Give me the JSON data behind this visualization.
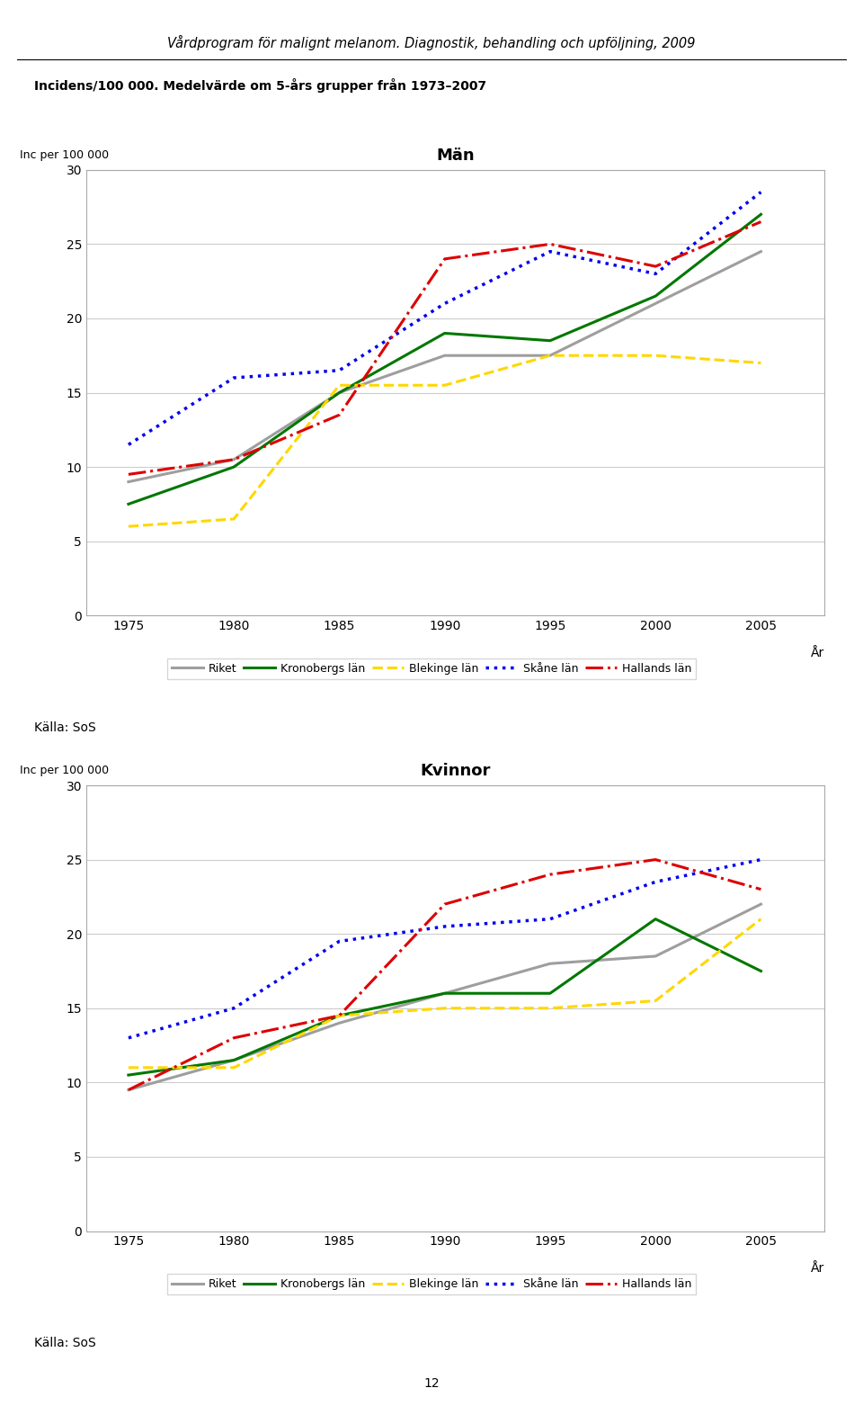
{
  "title_header": "Vårdprogram för malignt melanom. Diagnostik, behandling och upföljning, 2009",
  "subtitle": "Incidens/100 000. Medelvärde om 5-års grupper från 1973–2007",
  "ylabel": "Inc per 100 000",
  "xlabel": "År",
  "kallatext": "Källa: SoS",
  "x": [
    1975,
    1980,
    1985,
    1990,
    1995,
    2000,
    2005
  ],
  "men": {
    "title": "Män",
    "riket": [
      9.0,
      10.5,
      15.0,
      17.5,
      17.5,
      21.0,
      24.5
    ],
    "kronobergs": [
      7.5,
      10.0,
      15.0,
      19.0,
      18.5,
      21.5,
      27.0
    ],
    "blekinge": [
      6.0,
      6.5,
      15.5,
      15.5,
      17.5,
      17.5,
      17.0
    ],
    "skane": [
      11.5,
      16.0,
      16.5,
      21.0,
      24.5,
      23.0,
      28.5
    ],
    "hallands": [
      9.5,
      10.5,
      13.5,
      24.0,
      25.0,
      23.5,
      26.5
    ]
  },
  "women": {
    "title": "Kvinnor",
    "riket": [
      9.5,
      11.5,
      14.0,
      16.0,
      18.0,
      18.5,
      22.0
    ],
    "kronobergs": [
      10.5,
      11.5,
      14.5,
      16.0,
      16.0,
      21.0,
      17.5
    ],
    "blekinge": [
      11.0,
      11.0,
      14.5,
      15.0,
      15.0,
      15.5,
      21.0
    ],
    "skane": [
      13.0,
      15.0,
      19.5,
      20.5,
      21.0,
      23.5,
      25.0
    ],
    "hallands": [
      9.5,
      13.0,
      14.5,
      22.0,
      24.0,
      25.0,
      23.0
    ]
  },
  "colors": {
    "riket": "#9E9E9E",
    "kronobergs": "#007700",
    "blekinge": "#FFD700",
    "skane": "#0000EE",
    "hallands": "#DD0000"
  },
  "legend_labels": [
    "Riket",
    "Kronobergs län",
    "Blekinge län",
    "Skåne län",
    "Hallands län"
  ],
  "ylim": [
    0,
    30
  ],
  "yticks": [
    0,
    5,
    10,
    15,
    20,
    25,
    30
  ],
  "xticks": [
    1975,
    1980,
    1985,
    1990,
    1995,
    2000,
    2005
  ],
  "page_number": "12"
}
